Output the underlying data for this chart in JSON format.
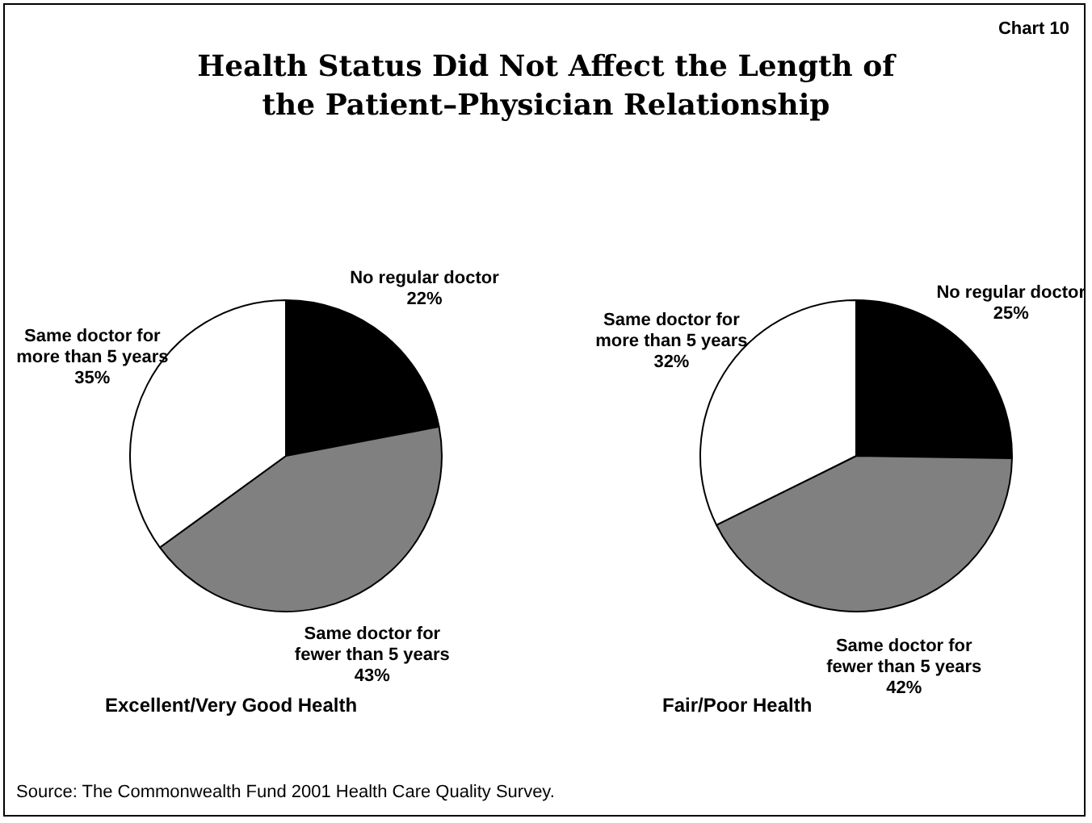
{
  "chart_data": [
    {
      "type": "pie",
      "title": "Health Status Did Not Affect the Length of the Patient–Physician Relationship",
      "xlabel": "Excellent/Very Good Health",
      "annotations": [
        "Chart 10",
        "Source: The Commonwealth Fund 2001 Health Care Quality Survey."
      ],
      "categories": [
        "No regular doctor",
        "Same doctor for fewer than 5 years",
        "Same doctor for more than 5 years"
      ],
      "values": [
        22,
        43,
        35
      ],
      "value_labels": [
        "22%",
        "43%",
        "35%"
      ],
      "colors": [
        "#000000",
        "#808080",
        "#ffffff"
      ]
    },
    {
      "type": "pie",
      "xlabel": "Fair/Poor Health",
      "categories": [
        "No regular doctor",
        "Same doctor for fewer than 5 years",
        "Same doctor for more than 5 years"
      ],
      "values": [
        25,
        42,
        32
      ],
      "value_labels": [
        "25%",
        "42%",
        "32%"
      ],
      "colors": [
        "#000000",
        "#808080",
        "#ffffff"
      ]
    }
  ]
}
